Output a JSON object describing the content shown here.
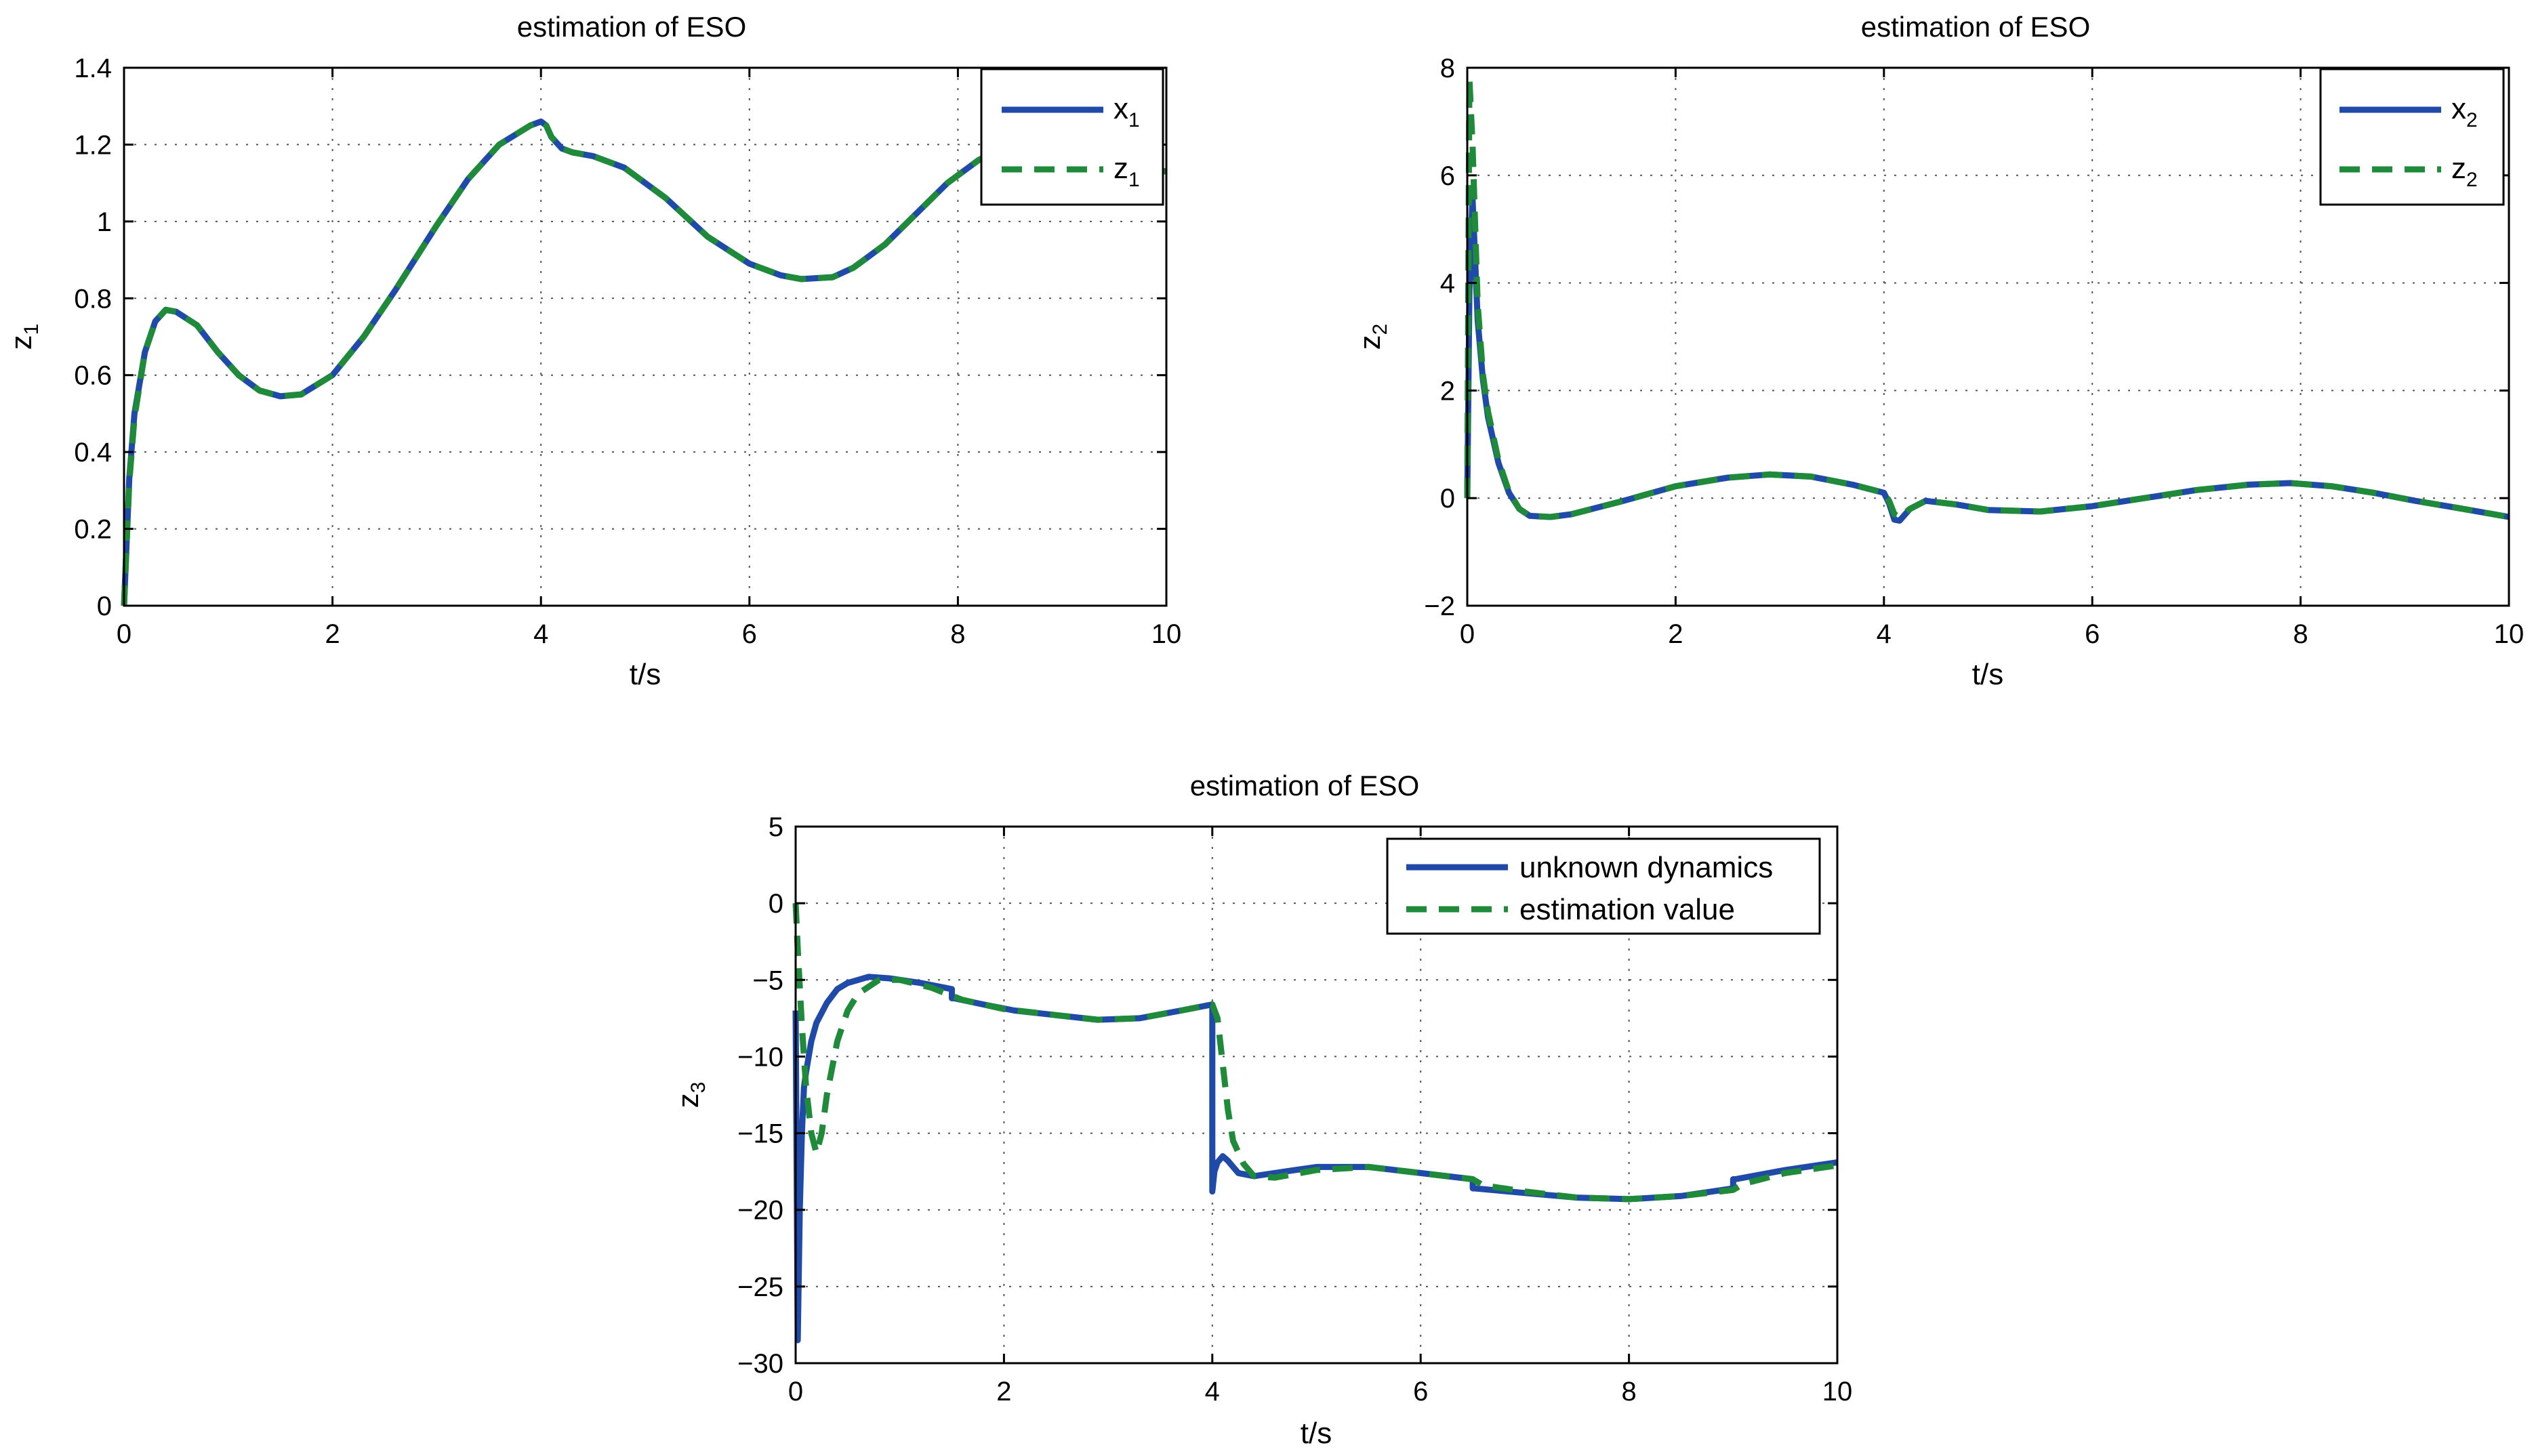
{
  "chart_data": [
    {
      "type": "line",
      "title": "estimation of ESO",
      "xlabel": "t/s",
      "ylabel": "z",
      "ylabel_sub": "1",
      "xlim": [
        0,
        10
      ],
      "ylim": [
        0,
        1.4
      ],
      "xticks": [
        "0",
        "2",
        "4",
        "6",
        "8",
        "10"
      ],
      "yticks": [
        "0",
        "0.2",
        "0.4",
        "0.6",
        "0.8",
        "1",
        "1.2",
        "1.4"
      ],
      "grid": true,
      "legend_position": "top-right",
      "series": [
        {
          "name": "x",
          "name_sub": "1",
          "color": "#1f4aa8",
          "style": "solid",
          "x": [
            0,
            0.05,
            0.1,
            0.2,
            0.3,
            0.4,
            0.5,
            0.7,
            0.9,
            1.1,
            1.3,
            1.5,
            1.7,
            2.0,
            2.3,
            2.6,
            3.0,
            3.3,
            3.6,
            3.9,
            4.0,
            4.05,
            4.1,
            4.2,
            4.3,
            4.5,
            4.8,
            5.2,
            5.6,
            6.0,
            6.3,
            6.5,
            6.8,
            7.0,
            7.3,
            7.6,
            7.9,
            8.2,
            8.5,
            8.8,
            9.1,
            9.4,
            9.7,
            10.0
          ],
          "y": [
            0,
            0.33,
            0.5,
            0.66,
            0.74,
            0.77,
            0.765,
            0.73,
            0.66,
            0.6,
            0.56,
            0.545,
            0.55,
            0.6,
            0.7,
            0.82,
            0.99,
            1.11,
            1.2,
            1.25,
            1.26,
            1.25,
            1.22,
            1.19,
            1.18,
            1.17,
            1.14,
            1.06,
            0.96,
            0.89,
            0.86,
            0.85,
            0.855,
            0.88,
            0.94,
            1.02,
            1.1,
            1.16,
            1.2,
            1.21,
            1.2,
            1.17,
            1.14,
            1.13
          ]
        },
        {
          "name": "z",
          "name_sub": "1",
          "color": "#1f8a3a",
          "style": "dashed",
          "x": [
            0,
            0.05,
            0.1,
            0.2,
            0.3,
            0.4,
            0.5,
            0.7,
            0.9,
            1.1,
            1.3,
            1.5,
            1.7,
            2.0,
            2.3,
            2.6,
            3.0,
            3.3,
            3.6,
            3.9,
            4.0,
            4.05,
            4.1,
            4.2,
            4.3,
            4.5,
            4.8,
            5.2,
            5.6,
            6.0,
            6.3,
            6.5,
            6.8,
            7.0,
            7.3,
            7.6,
            7.9,
            8.2,
            8.5,
            8.8,
            9.1,
            9.4,
            9.7,
            10.0
          ],
          "y": [
            0,
            0.32,
            0.49,
            0.66,
            0.74,
            0.77,
            0.765,
            0.73,
            0.66,
            0.6,
            0.56,
            0.545,
            0.55,
            0.6,
            0.7,
            0.82,
            0.99,
            1.11,
            1.2,
            1.25,
            1.26,
            1.25,
            1.22,
            1.19,
            1.18,
            1.17,
            1.14,
            1.06,
            0.96,
            0.89,
            0.86,
            0.85,
            0.855,
            0.88,
            0.94,
            1.02,
            1.1,
            1.16,
            1.2,
            1.21,
            1.2,
            1.17,
            1.14,
            1.13
          ]
        }
      ]
    },
    {
      "type": "line",
      "title": "estimation of ESO",
      "xlabel": "t/s",
      "ylabel": "z",
      "ylabel_sub": "2",
      "xlim": [
        0,
        10
      ],
      "ylim": [
        -2,
        8
      ],
      "xticks": [
        "0",
        "2",
        "4",
        "6",
        "8",
        "10"
      ],
      "yticks": [
        "−2",
        "0",
        "2",
        "4",
        "6",
        "8"
      ],
      "grid": true,
      "legend_position": "top-right",
      "series": [
        {
          "name": "x",
          "name_sub": "2",
          "color": "#1f4aa8",
          "style": "solid",
          "x": [
            0,
            0.02,
            0.05,
            0.1,
            0.15,
            0.2,
            0.3,
            0.4,
            0.5,
            0.6,
            0.8,
            1.0,
            1.5,
            2.0,
            2.5,
            2.9,
            3.3,
            3.7,
            4.0,
            4.05,
            4.1,
            4.15,
            4.25,
            4.4,
            4.7,
            5.0,
            5.5,
            6.0,
            6.5,
            7.0,
            7.5,
            7.9,
            8.3,
            8.7,
            9.1,
            9.5,
            10.0
          ],
          "y": [
            0,
            3.8,
            5.6,
            3.3,
            2.2,
            1.5,
            0.65,
            0.1,
            -0.2,
            -0.33,
            -0.35,
            -0.3,
            -0.05,
            0.22,
            0.38,
            0.44,
            0.4,
            0.25,
            0.1,
            -0.1,
            -0.4,
            -0.42,
            -0.2,
            -0.05,
            -0.12,
            -0.22,
            -0.25,
            -0.15,
            0.0,
            0.15,
            0.25,
            0.28,
            0.22,
            0.1,
            -0.05,
            -0.18,
            -0.35
          ]
        },
        {
          "name": "z",
          "name_sub": "2",
          "color": "#1f8a3a",
          "style": "dashed",
          "x": [
            0,
            0.02,
            0.05,
            0.1,
            0.15,
            0.2,
            0.3,
            0.4,
            0.5,
            0.6,
            0.8,
            1.0,
            1.5,
            2.0,
            2.5,
            2.9,
            3.3,
            3.7,
            4.0,
            4.05,
            4.1,
            4.15,
            4.25,
            4.4,
            4.7,
            5.0,
            5.5,
            6.0,
            6.5,
            7.0,
            7.5,
            7.9,
            8.3,
            8.7,
            9.1,
            9.5,
            10.0
          ],
          "y": [
            0,
            7.8,
            6.6,
            3.6,
            2.3,
            1.6,
            0.7,
            0.12,
            -0.2,
            -0.33,
            -0.35,
            -0.3,
            -0.05,
            0.22,
            0.38,
            0.44,
            0.4,
            0.25,
            0.1,
            -0.05,
            -0.3,
            -0.35,
            -0.2,
            -0.05,
            -0.12,
            -0.22,
            -0.25,
            -0.15,
            0.0,
            0.15,
            0.25,
            0.28,
            0.22,
            0.1,
            -0.05,
            -0.18,
            -0.35
          ]
        }
      ]
    },
    {
      "type": "line",
      "title": "estimation of ESO",
      "xlabel": "t/s",
      "ylabel": "z",
      "ylabel_sub": "3",
      "xlim": [
        0,
        10
      ],
      "ylim": [
        -30,
        5
      ],
      "xticks": [
        "0",
        "2",
        "4",
        "6",
        "8",
        "10"
      ],
      "yticks": [
        "−30",
        "−25",
        "−20",
        "−15",
        "−10",
        "−5",
        "0",
        "5"
      ],
      "grid": true,
      "legend_position": "top-right",
      "series": [
        {
          "name": "unknown dynamics",
          "color": "#1f4aa8",
          "style": "solid",
          "x": [
            0,
            0.02,
            0.04,
            0.06,
            0.08,
            0.1,
            0.15,
            0.2,
            0.3,
            0.4,
            0.5,
            0.7,
            0.9,
            1.2,
            1.5,
            1.5,
            1.52,
            1.8,
            2.1,
            2.5,
            2.9,
            3.3,
            3.7,
            4.0,
            4.0,
            4.02,
            4.05,
            4.1,
            4.15,
            4.25,
            4.4,
            4.7,
            5.0,
            5.5,
            6.0,
            6.5,
            6.5,
            6.52,
            7.0,
            7.5,
            8.0,
            8.5,
            9.0,
            9.0,
            9.02,
            9.5,
            10.0
          ],
          "y": [
            -7,
            -28.5,
            -20,
            -15,
            -12,
            -11,
            -9,
            -7.8,
            -6.5,
            -5.6,
            -5.2,
            -4.8,
            -4.9,
            -5.2,
            -5.6,
            -6.2,
            -6.2,
            -6.6,
            -7.0,
            -7.3,
            -7.6,
            -7.5,
            -7.0,
            -6.6,
            -18.8,
            -17.5,
            -16.9,
            -16.5,
            -16.8,
            -17.6,
            -17.8,
            -17.5,
            -17.2,
            -17.2,
            -17.6,
            -18.0,
            -18.6,
            -18.6,
            -18.9,
            -19.2,
            -19.3,
            -19.1,
            -18.6,
            -18.0,
            -18.0,
            -17.4,
            -16.9
          ]
        },
        {
          "name": "estimation value",
          "color": "#1f8a3a",
          "style": "dashed",
          "x": [
            0,
            0.02,
            0.06,
            0.1,
            0.15,
            0.2,
            0.25,
            0.3,
            0.4,
            0.5,
            0.6,
            0.8,
            1.0,
            1.3,
            1.6,
            2.0,
            2.5,
            2.9,
            3.3,
            3.7,
            4.0,
            4.05,
            4.1,
            4.15,
            4.2,
            4.3,
            4.4,
            4.6,
            5.0,
            5.5,
            6.0,
            6.5,
            6.6,
            7.0,
            7.5,
            8.0,
            8.5,
            9.0,
            9.1,
            9.5,
            10.0
          ],
          "y": [
            0,
            -3,
            -8,
            -12,
            -15,
            -16.3,
            -15,
            -12.5,
            -9,
            -7,
            -5.9,
            -5.0,
            -5.0,
            -5.5,
            -6.3,
            -6.9,
            -7.3,
            -7.6,
            -7.5,
            -7.0,
            -6.6,
            -7.5,
            -10.5,
            -13.5,
            -15.5,
            -17.0,
            -17.8,
            -17.9,
            -17.4,
            -17.2,
            -17.6,
            -18.0,
            -18.4,
            -18.8,
            -19.2,
            -19.3,
            -19.1,
            -18.7,
            -18.3,
            -17.6,
            -17.1
          ]
        }
      ]
    }
  ]
}
